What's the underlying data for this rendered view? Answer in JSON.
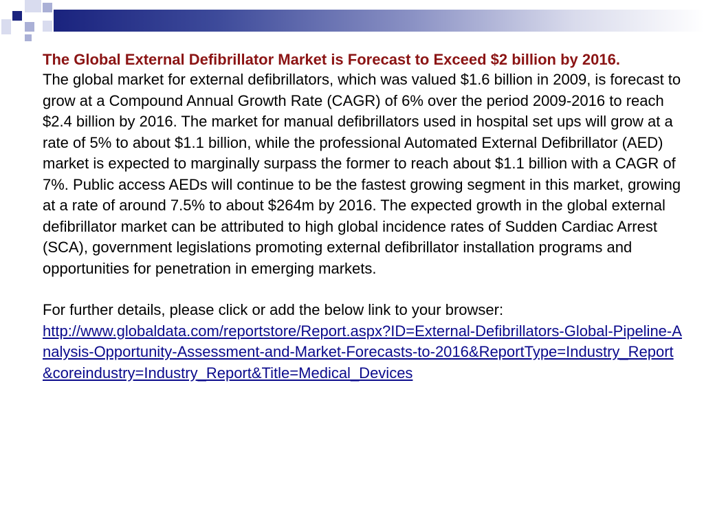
{
  "slide": {
    "title": "The Global External Defibrillator Market is Forecast to Exceed $2 billion by 2016.",
    "body": "The global market for external defibrillators, which was valued $1.6 billion in 2009, is forecast to grow at a Compound Annual Growth Rate (CAGR) of 6% over the period 2009-2016 to reach $2.4 billion by 2016. The market for manual defibrillators used in hospital set ups will grow at a rate of 5% to about $1.1 billion, while the professional Automated External Defibrillator (AED) market is expected to marginally surpass the former to reach about $1.1 billion with a CAGR of 7%. Public access AEDs will continue to be the fastest growing segment in this market, growing at a rate of around 7.5% to about $264m by 2016. The expected growth in the global external defibrillator market can be attributed to high global incidence rates of Sudden Cardiac Arrest (SCA), government legislations promoting external defibrillator installation programs and opportunities for penetration in emerging markets.",
    "details_prompt": "For further details, please click or add the below link to your browser:",
    "link_text": "http://www.globaldata.com/reportstore/Report.aspx?ID=External-Defibrillators-Global-Pipeline-Analysis-Opportunity-Assessment-and-Market-Forecasts-to-2016&ReportType=Industry_Report&coreindustry=Industry_Report&Title=Medical_Devices"
  },
  "colors": {
    "title": "#8b1414",
    "text": "#000000",
    "link": "#0a0a8c",
    "accent": "#1a237e"
  }
}
